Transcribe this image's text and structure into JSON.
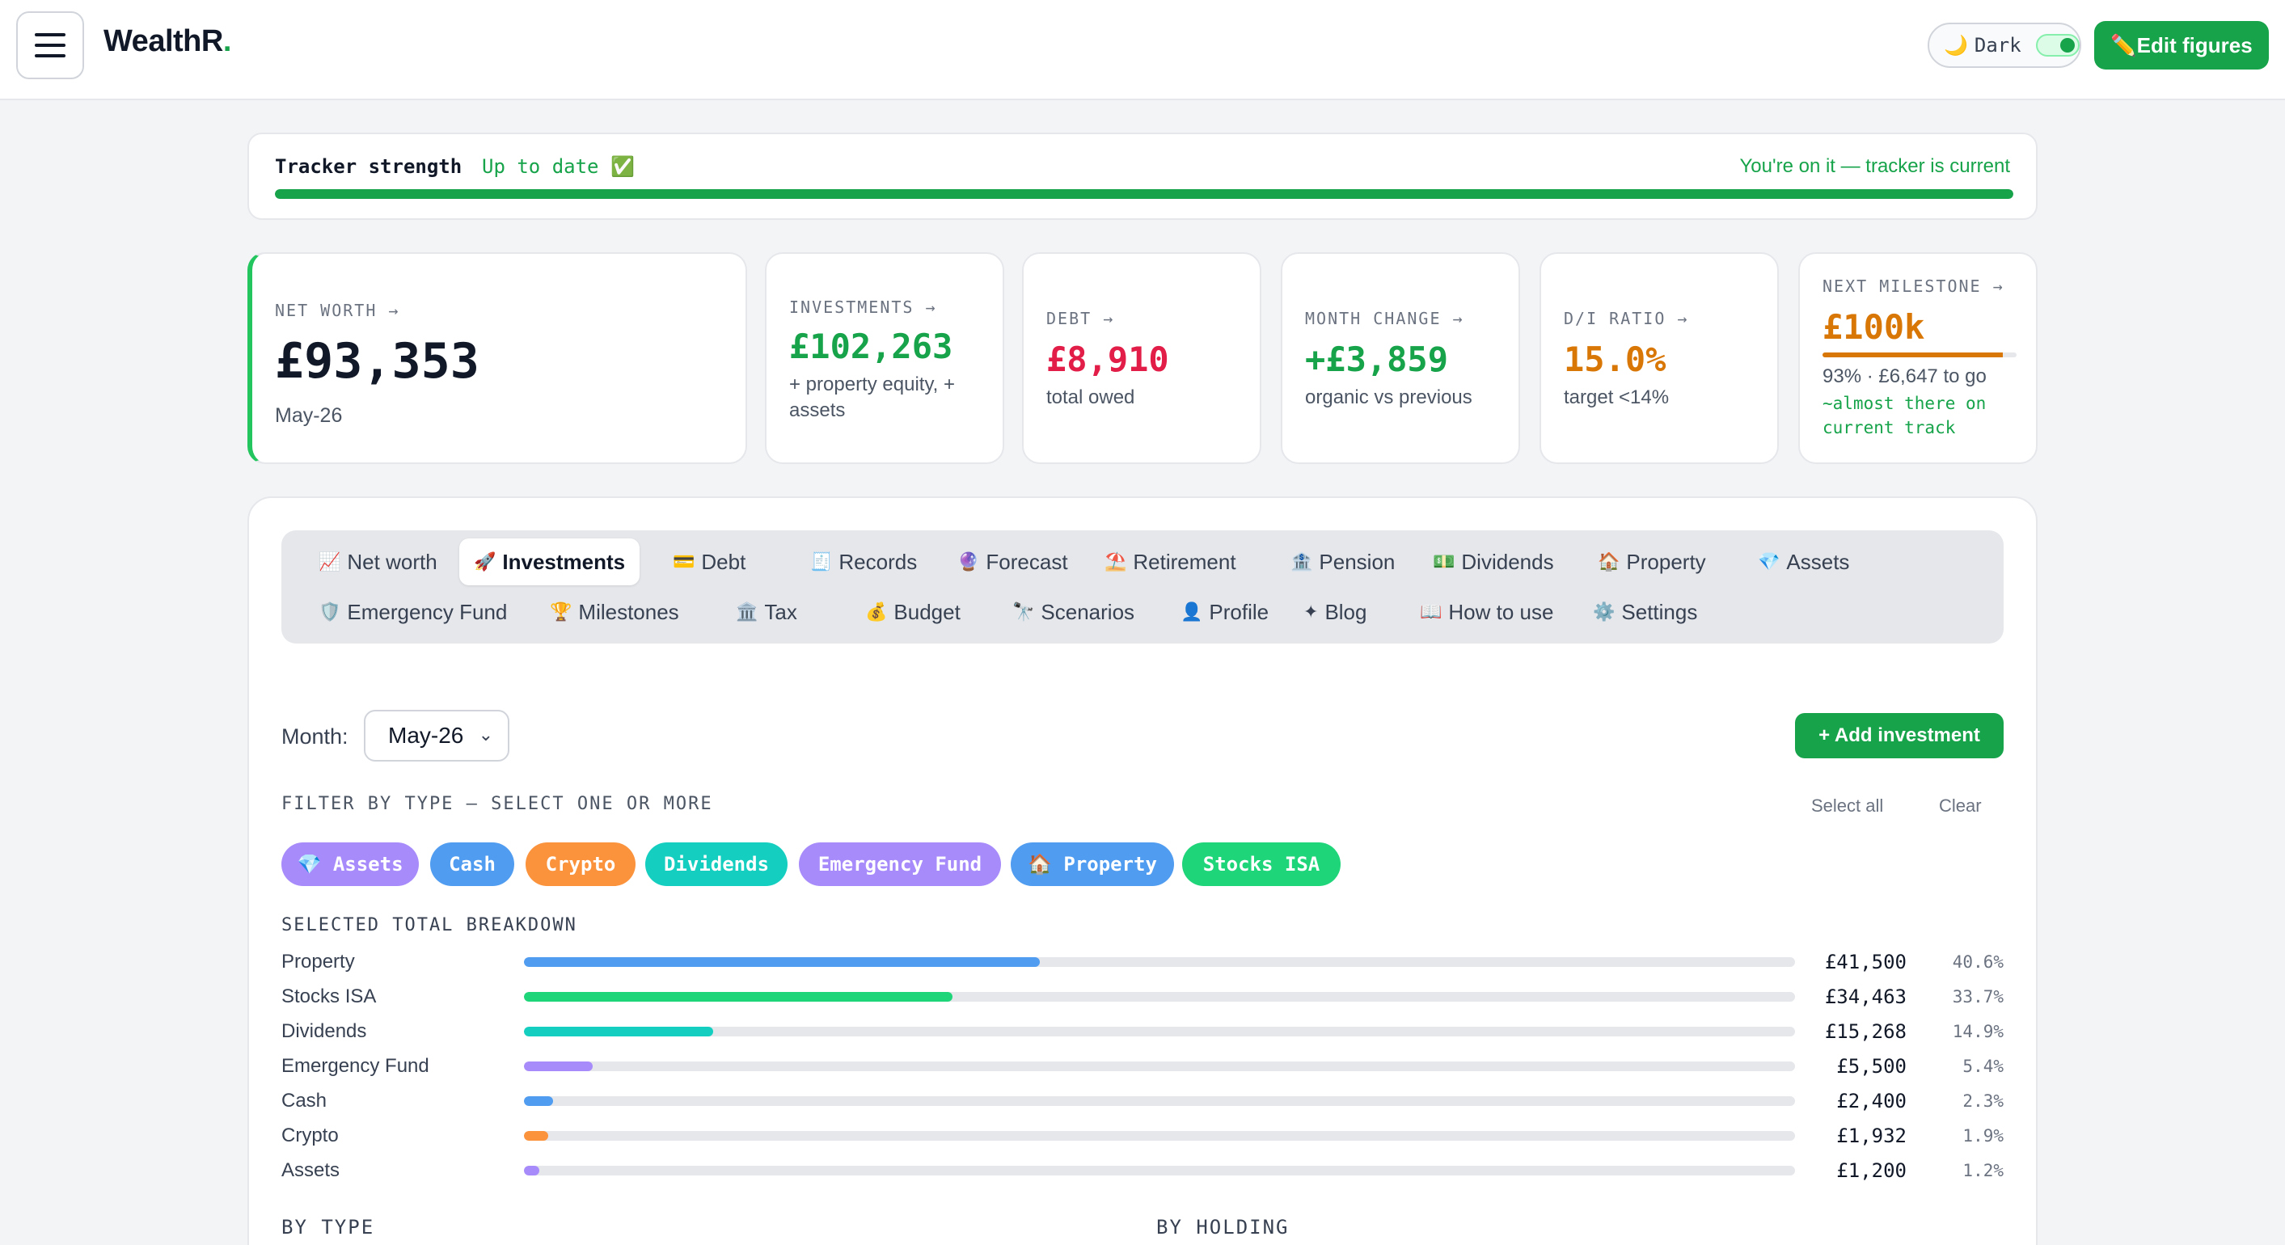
{
  "header": {
    "brand": "WealthR",
    "brand_dot": ".",
    "dark_icon": "🌙",
    "dark_label": "Dark",
    "edit_label": "✏️Edit figures"
  },
  "tracker": {
    "label": "Tracker strength",
    "status": "Up to date ✅",
    "right_text": "You're on it — tracker is current",
    "progress": 1.0,
    "color": "#16a34a"
  },
  "cards": {
    "net_worth": {
      "key": "NET WORTH →",
      "value": "£93,353",
      "sub": "May-26"
    },
    "investments": {
      "key": "INVESTMENTS →",
      "value": "£102,263",
      "sub": "+ property equity, + assets"
    },
    "debt": {
      "key": "DEBT →",
      "value": "£8,910",
      "sub": "total owed"
    },
    "month_change": {
      "key": "MONTH CHANGE →",
      "value": "+£3,859",
      "sub": "organic vs previous"
    },
    "di_ratio": {
      "key": "D/I RATIO →",
      "value": "15.0%",
      "sub": "target <14%"
    },
    "milestone": {
      "key": "NEXT MILESTONE →",
      "value": "£100k",
      "sub": "93% · £6,647 to go",
      "note": "~almost there on current track",
      "progress": 0.93
    }
  },
  "tabs": [
    {
      "icon": "📈",
      "label": "Net worth"
    },
    {
      "icon": "🚀",
      "label": "Investments",
      "active": true
    },
    {
      "icon": "💳",
      "label": "Debt"
    },
    {
      "icon": "🧾",
      "label": "Records"
    },
    {
      "icon": "🔮",
      "label": "Forecast"
    },
    {
      "icon": "⛱️",
      "label": "Retirement"
    },
    {
      "icon": "🏦",
      "label": "Pension"
    },
    {
      "icon": "💵",
      "label": "Dividends"
    },
    {
      "icon": "🏠",
      "label": "Property"
    },
    {
      "icon": "💎",
      "label": "Assets"
    },
    {
      "icon": "🛡️",
      "label": "Emergency Fund"
    },
    {
      "icon": "🏆",
      "label": "Milestones"
    },
    {
      "icon": "🏛️",
      "label": "Tax"
    },
    {
      "icon": "💰",
      "label": "Budget"
    },
    {
      "icon": "🔭",
      "label": "Scenarios"
    },
    {
      "icon": "👤",
      "label": "Profile"
    },
    {
      "icon": "✦",
      "label": "Blog"
    },
    {
      "icon": "📖",
      "label": "How to use"
    },
    {
      "icon": "⚙️",
      "label": "Settings"
    }
  ],
  "controls": {
    "month_label": "Month:",
    "month_value": "May-26",
    "add_label": "+ Add investment",
    "filter_heading": "FILTER BY TYPE — SELECT ONE OR MORE",
    "select_all": "Select all",
    "clear": "Clear"
  },
  "chips": [
    {
      "label": "💎 Assets",
      "color": "#a78bfa"
    },
    {
      "label": "Cash",
      "color": "#4f9cf0"
    },
    {
      "label": "Crypto",
      "color": "#fb923c"
    },
    {
      "label": "Dividends",
      "color": "#14cfc0"
    },
    {
      "label": "Emergency Fund",
      "color": "#a78bfa"
    },
    {
      "label": "🏠 Property",
      "color": "#4f9cf0"
    },
    {
      "label": "Stocks ISA",
      "color": "#1fd57a"
    }
  ],
  "breakdown": {
    "heading": "SELECTED TOTAL BREAKDOWN",
    "rows": [
      {
        "name": "Property",
        "amount": "£41,500",
        "pct": "40.6%",
        "fraction": 0.406,
        "color": "#4f9cf0"
      },
      {
        "name": "Stocks ISA",
        "amount": "£34,463",
        "pct": "33.7%",
        "fraction": 0.337,
        "color": "#1fd57a"
      },
      {
        "name": "Dividends",
        "amount": "£15,268",
        "pct": "14.9%",
        "fraction": 0.149,
        "color": "#14cfc0"
      },
      {
        "name": "Emergency Fund",
        "amount": "£5,500",
        "pct": "5.4%",
        "fraction": 0.054,
        "color": "#a78bfa"
      },
      {
        "name": "Cash",
        "amount": "£2,400",
        "pct": "2.3%",
        "fraction": 0.023,
        "color": "#4f9cf0"
      },
      {
        "name": "Crypto",
        "amount": "£1,932",
        "pct": "1.9%",
        "fraction": 0.019,
        "color": "#fb923c"
      },
      {
        "name": "Assets",
        "amount": "£1,200",
        "pct": "1.2%",
        "fraction": 0.012,
        "color": "#a78bfa"
      }
    ]
  },
  "sections": {
    "by_type": "BY TYPE",
    "by_holding": "BY HOLDING"
  }
}
